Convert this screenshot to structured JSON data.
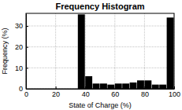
{
  "chart_data": {
    "type": "histogram",
    "title": "Frequency Histogram",
    "x_label": "State of Charge (%)",
    "y_label": "Frequency (%)",
    "bins": [
      35,
      40,
      45,
      50,
      55,
      60,
      65,
      70,
      75,
      80,
      85,
      90,
      95,
      100
    ],
    "values": [
      35.5,
      6,
      2.5,
      2.5,
      2,
      2.5,
      2.5,
      3,
      4,
      4,
      2,
      2,
      34
    ],
    "color": "#000000",
    "xlim": [
      0,
      100
    ],
    "xticks": [
      0,
      20,
      40,
      60,
      80,
      100
    ],
    "ylim": [
      0,
      36
    ],
    "yticks": [
      0,
      10,
      20,
      30
    ],
    "grid": true
  }
}
